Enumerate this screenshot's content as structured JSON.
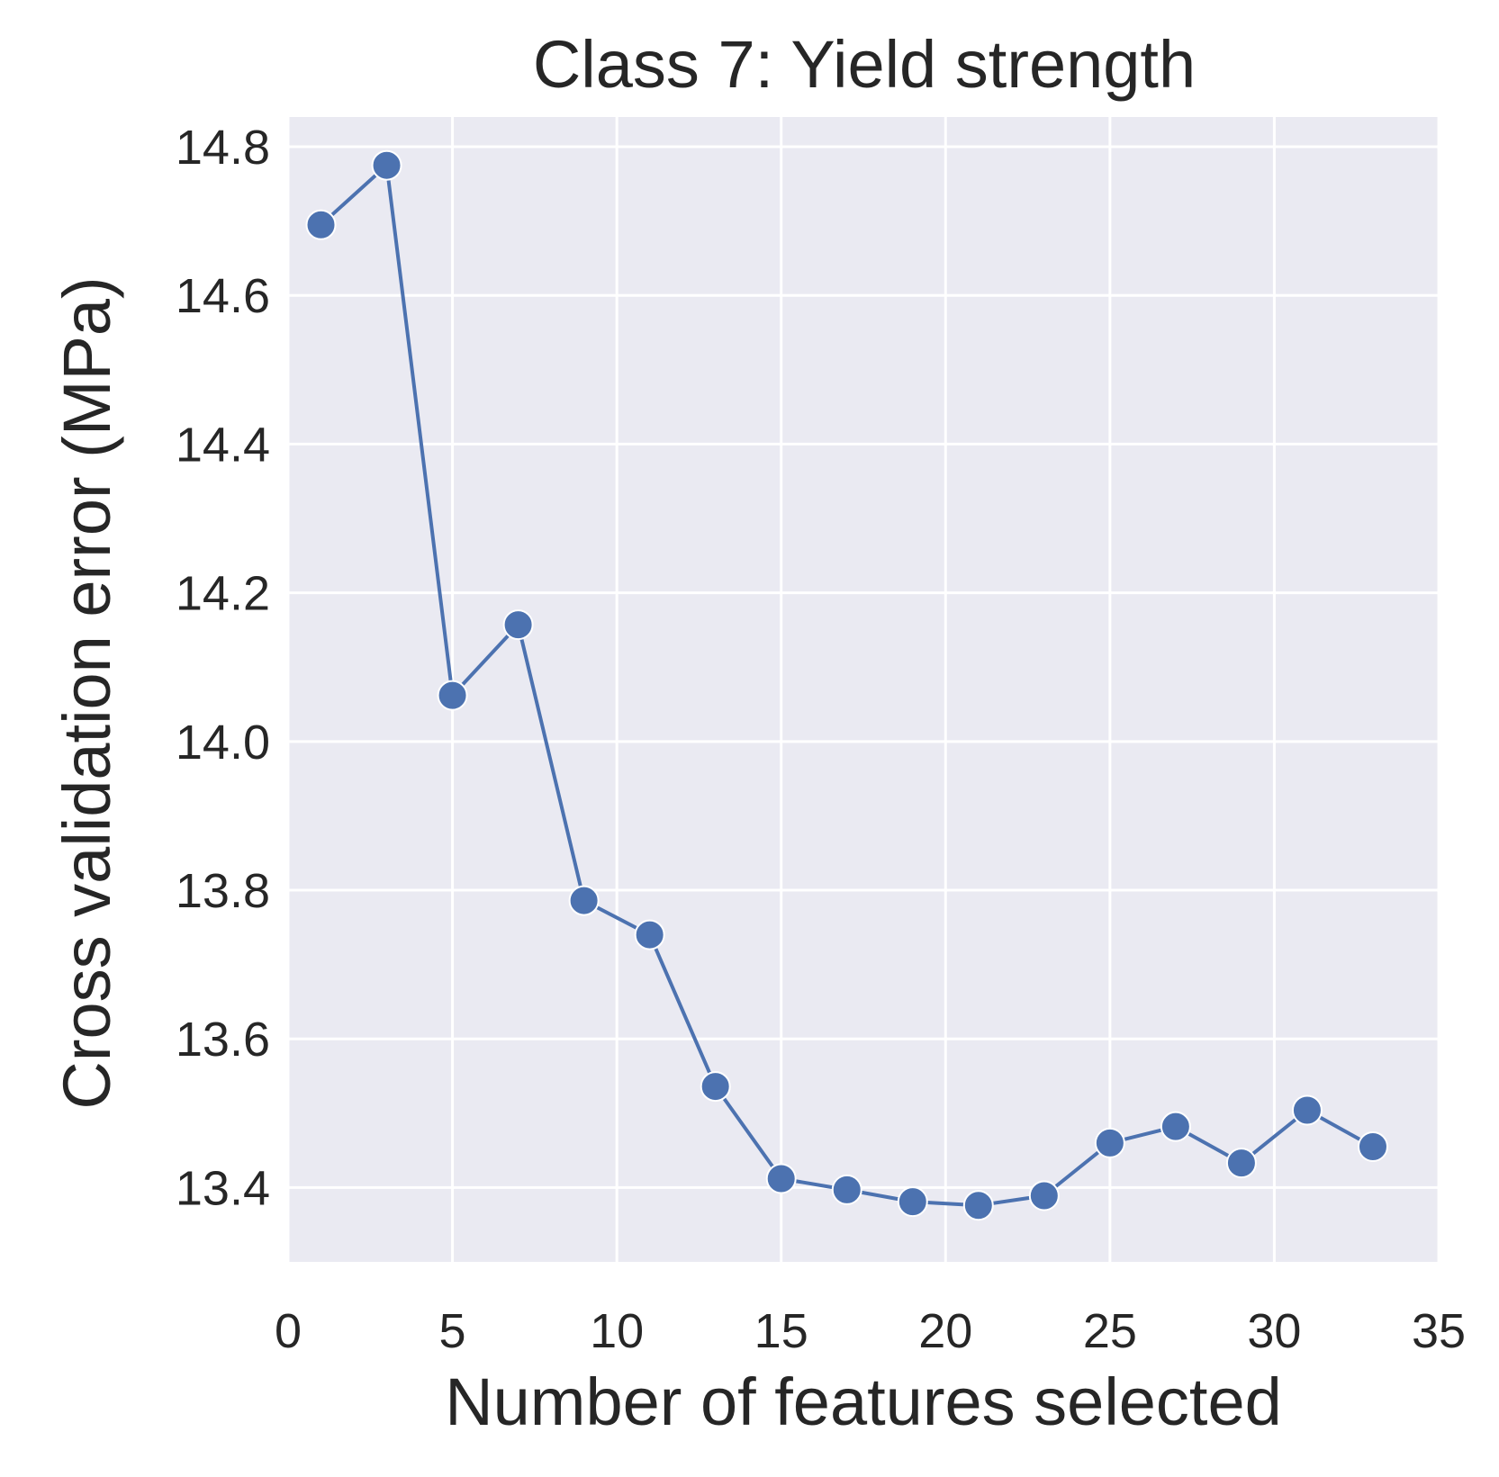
{
  "chart_data": {
    "type": "line",
    "title": "Class 7: Yield strength",
    "xlabel": "Number of features selected",
    "ylabel": "Cross validation error (MPa)",
    "xlim": [
      0,
      35
    ],
    "ylim": [
      13.3,
      14.84
    ],
    "xticks": [
      0,
      5,
      10,
      15,
      20,
      25,
      30,
      35
    ],
    "yticks": [
      13.4,
      13.6,
      13.8,
      14.0,
      14.2,
      14.4,
      14.6,
      14.8
    ],
    "xtick_labels": [
      "0",
      "5",
      "10",
      "15",
      "20",
      "25",
      "30",
      "35"
    ],
    "ytick_labels": [
      "13.4",
      "13.6",
      "13.8",
      "14.0",
      "14.2",
      "14.4",
      "14.6",
      "14.8"
    ],
    "grid": true,
    "legend": "none",
    "background_color": "#eaeaf2",
    "series": [
      {
        "color": "#4c72b0",
        "marker": "circle",
        "x": [
          1,
          3,
          5,
          7,
          9,
          11,
          13,
          15,
          17,
          19,
          21,
          23,
          25,
          27,
          29,
          31,
          33
        ],
        "y": [
          14.695,
          14.775,
          14.062,
          14.157,
          13.786,
          13.74,
          13.536,
          13.412,
          13.397,
          13.381,
          13.376,
          13.389,
          13.46,
          13.482,
          13.433,
          13.504,
          13.455
        ]
      }
    ]
  }
}
